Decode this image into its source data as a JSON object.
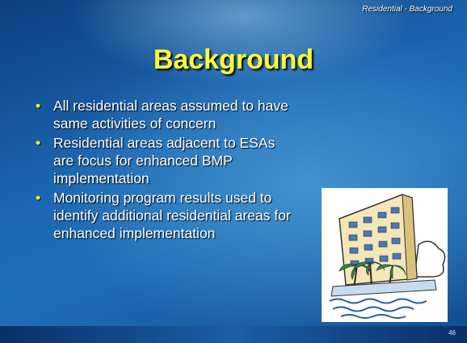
{
  "header": "Residential - Background",
  "title": "Background",
  "bullets": [
    "All residential areas assumed to have same activities of concern",
    "Residential areas adjacent to ESAs are focus for enhanced BMP implementation",
    "Monitoring program results used to identify additional residential areas for enhanced implementation"
  ],
  "page_number": "46"
}
